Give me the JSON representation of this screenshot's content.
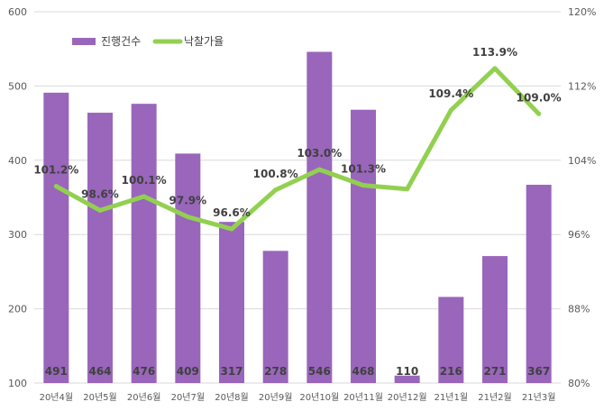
{
  "chart_data": {
    "type": "bar",
    "categories": [
      "20년4월",
      "20년5월",
      "20년6월",
      "20년7월",
      "20년8월",
      "20년9월",
      "20년10월",
      "20년11월",
      "20년12월",
      "21년1월",
      "21년2월",
      "21년3월"
    ],
    "series": [
      {
        "name": "진행건수",
        "type": "bar",
        "axis": "left",
        "color": "#9966bb",
        "values": [
          491,
          464,
          476,
          409,
          317,
          278,
          546,
          468,
          110,
          216,
          271,
          367
        ],
        "labels": [
          "491",
          "464",
          "476",
          "409",
          "317",
          "278",
          "546",
          "468",
          "110",
          "216",
          "271",
          "367"
        ]
      },
      {
        "name": "낙찰가율",
        "type": "line",
        "axis": "right",
        "color": "#92d050",
        "values": [
          101.2,
          98.6,
          100.1,
          97.9,
          96.6,
          100.8,
          103.0,
          101.3,
          100.9,
          109.4,
          113.9,
          109.0
        ],
        "labels": [
          "101.2%",
          "98.6%",
          "100.1%",
          "97.9%",
          "96.6%",
          "100.8%",
          "103.0%",
          "101.3%",
          "",
          "109.4%",
          "113.9%",
          "109.0%"
        ]
      }
    ],
    "y_left": {
      "min": 100,
      "max": 600,
      "ticks": [
        "100",
        "200",
        "300",
        "400",
        "500",
        "600"
      ],
      "tick_values": [
        100,
        200,
        300,
        400,
        500,
        600
      ]
    },
    "y_right": {
      "min": 80,
      "max": 120,
      "ticks": [
        "80%",
        "88%",
        "96%",
        "104%",
        "112%",
        "120%"
      ],
      "tick_values": [
        80,
        88,
        96,
        104,
        112,
        120
      ]
    },
    "legend_position": "top-left",
    "grid": true
  }
}
